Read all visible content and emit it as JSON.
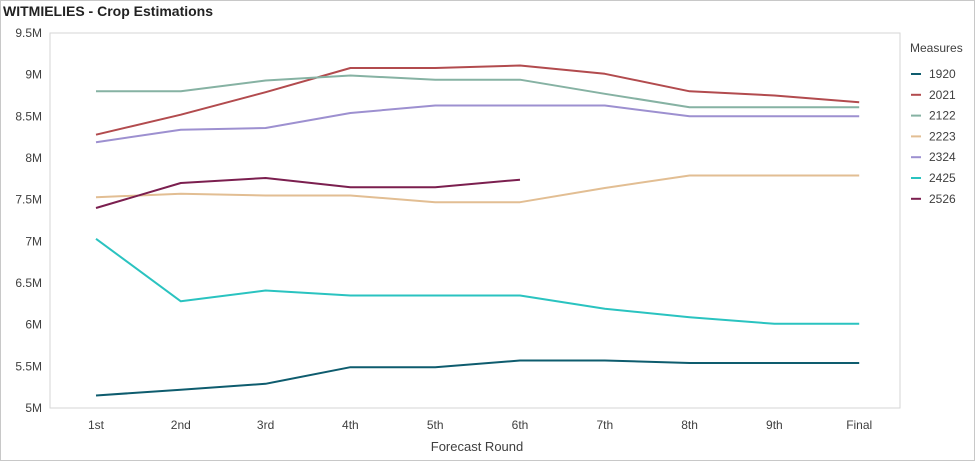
{
  "title": "WITMIELIES - Crop Estimations",
  "chart_data": {
    "type": "line",
    "title": "WITMIELIES - Crop Estimations",
    "xlabel": "Forecast Round",
    "ylabel": "",
    "categories": [
      "1st",
      "2nd",
      "3rd",
      "4th",
      "5th",
      "6th",
      "7th",
      "8th",
      "9th",
      "Final"
    ],
    "ylim": [
      5000000,
      9500000
    ],
    "yticks": [
      5000000,
      5500000,
      6000000,
      6500000,
      7000000,
      7500000,
      8000000,
      8500000,
      9000000,
      9500000
    ],
    "ytick_labels": [
      "5M",
      "5.5M",
      "6M",
      "6.5M",
      "7M",
      "7.5M",
      "8M",
      "8.5M",
      "9M",
      "9.5M"
    ],
    "grid": false,
    "legend": {
      "title": "Measures",
      "position": "right"
    },
    "series": [
      {
        "name": "1920",
        "color": "#0e5c6e",
        "values": [
          5150000,
          5220000,
          5290000,
          5490000,
          5490000,
          5570000,
          5570000,
          5540000,
          5540000,
          5540000
        ]
      },
      {
        "name": "2021",
        "color": "#b24b4e",
        "values": [
          8280000,
          8520000,
          8790000,
          9080000,
          9080000,
          9110000,
          9010000,
          8800000,
          8750000,
          8670000
        ]
      },
      {
        "name": "2122",
        "color": "#86b2a3",
        "values": [
          8800000,
          8800000,
          8930000,
          8990000,
          8940000,
          8940000,
          8770000,
          8610000,
          8610000,
          8610000
        ]
      },
      {
        "name": "2223",
        "color": "#e2be93",
        "values": [
          7530000,
          7570000,
          7550000,
          7550000,
          7470000,
          7470000,
          7640000,
          7790000,
          7790000,
          7790000
        ]
      },
      {
        "name": "2324",
        "color": "#9d90d0",
        "values": [
          8190000,
          8340000,
          8360000,
          8540000,
          8630000,
          8630000,
          8630000,
          8500000,
          8500000,
          8500000
        ]
      },
      {
        "name": "2425",
        "color": "#2ac3c0",
        "values": [
          7030000,
          6280000,
          6410000,
          6350000,
          6350000,
          6350000,
          6190000,
          6090000,
          6010000,
          6010000
        ]
      },
      {
        "name": "2526",
        "color": "#7b1f4f",
        "values": [
          7400000,
          7700000,
          7760000,
          7650000,
          7650000,
          7740000,
          null,
          null,
          null,
          null
        ]
      }
    ]
  }
}
